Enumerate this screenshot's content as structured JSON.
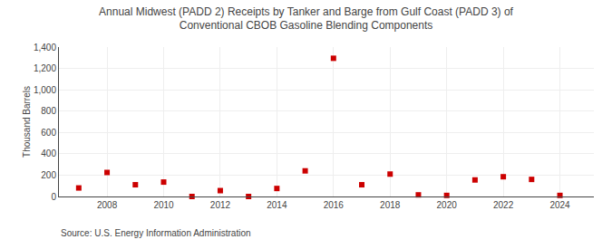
{
  "chart_data": {
    "type": "scatter",
    "title": "Annual Midwest (PADD 2) Receipts by Tanker and Barge from Gulf Coast (PADD 3) of\nConventional CBOB Gasoline Blending Components",
    "ylabel": "Thousand Barrels",
    "annotations": [
      "Source: U.S. Energy Information Administration"
    ],
    "x": [
      2007,
      2008,
      2009,
      2010,
      2011,
      2012,
      2013,
      2014,
      2015,
      2016,
      2017,
      2018,
      2019,
      2020,
      2021,
      2022,
      2023,
      2024
    ],
    "values": [
      80,
      225,
      110,
      135,
      0,
      55,
      0,
      75,
      240,
      1295,
      110,
      210,
      15,
      10,
      155,
      185,
      160,
      10
    ],
    "color": "#cc0000",
    "marker": "square",
    "xlim": [
      2006.3,
      2025.2
    ],
    "xticks": [
      2008,
      2010,
      2012,
      2014,
      2016,
      2018,
      2020,
      2022,
      2024
    ],
    "ylim": [
      0,
      1400
    ],
    "yticks": [
      0,
      200,
      400,
      600,
      800,
      {
        "value": 1000,
        "label": "1,000"
      },
      {
        "value": 1200,
        "label": "1,200"
      },
      {
        "value": 1400,
        "label": "1,400"
      }
    ],
    "grid": true
  }
}
